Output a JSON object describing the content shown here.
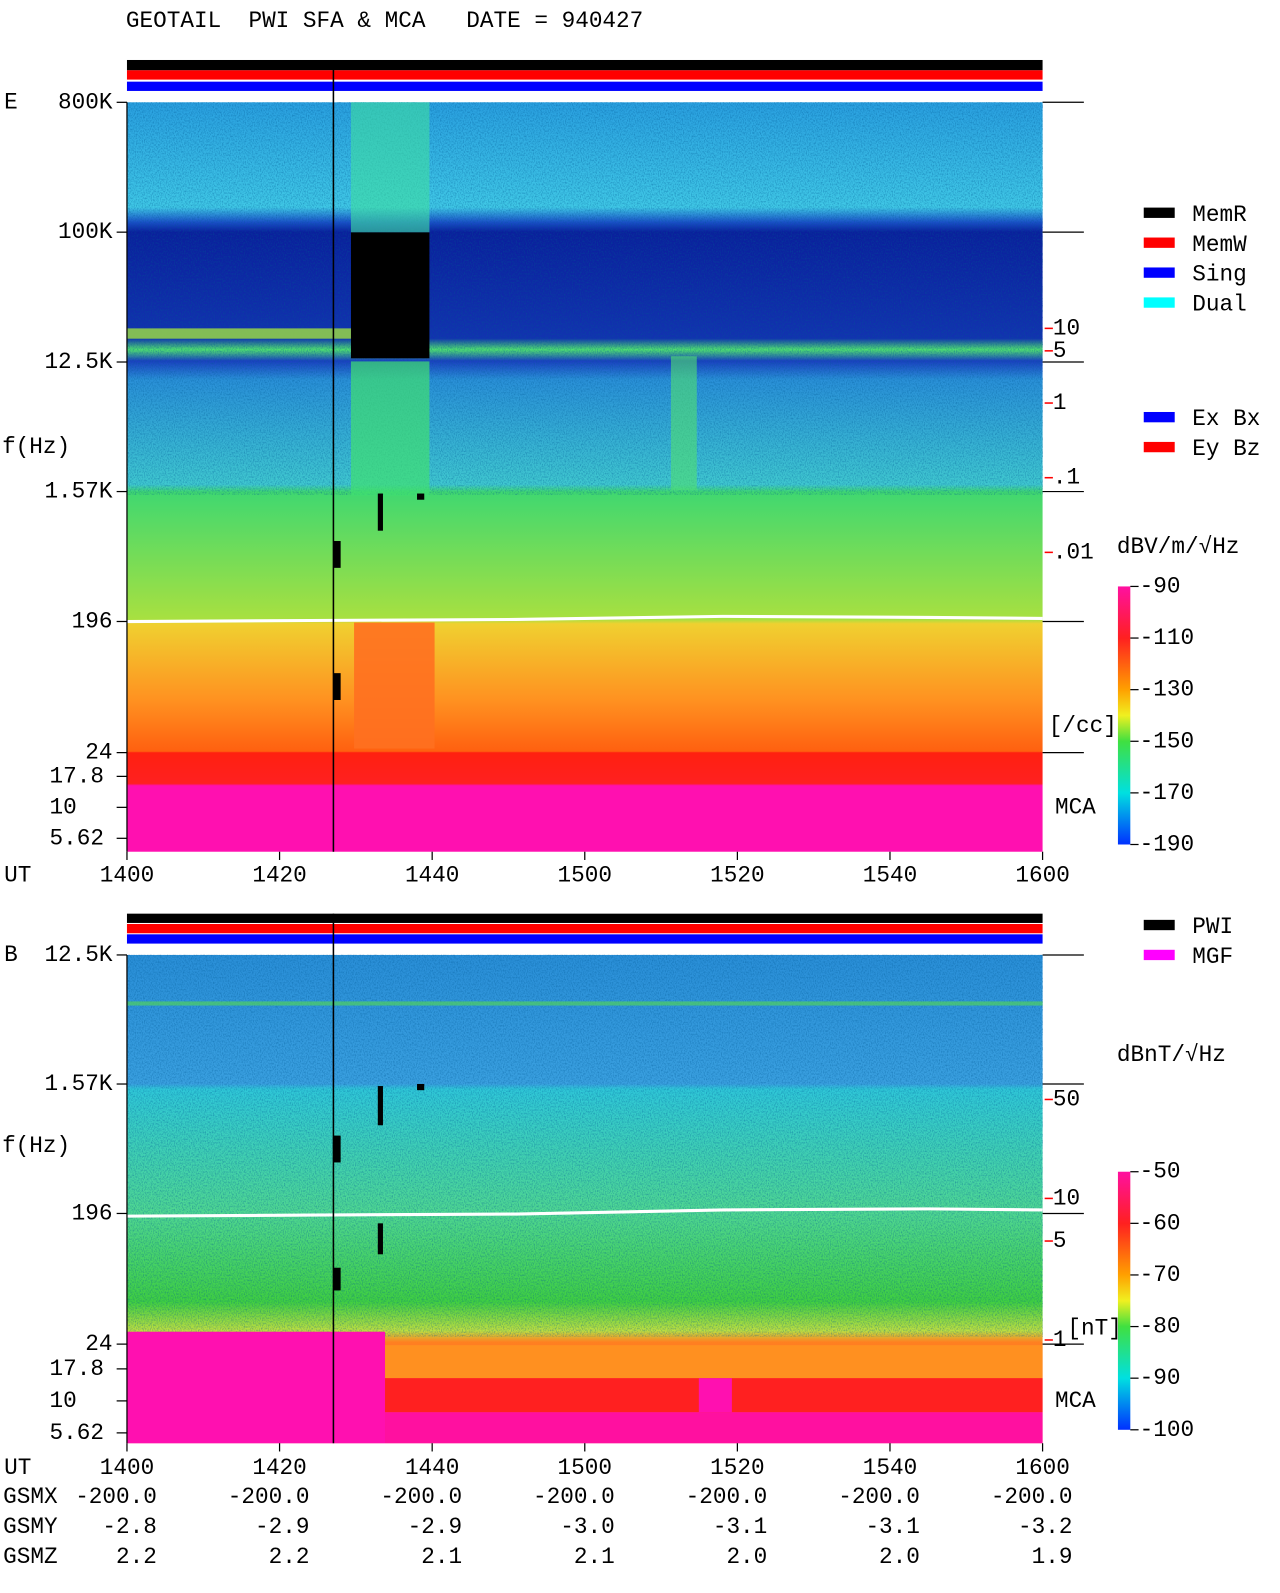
{
  "title": "GEOTAIL  PWI SFA & MCA   DATE = 940427",
  "chart_data": [
    {
      "type": "spectrogram",
      "panel": "E",
      "ylabel": "f(Hz)",
      "xlabel": "UT",
      "log_y": true,
      "ylim": [
        24,
        800000
      ],
      "yticks": [
        {
          "value": 800000,
          "label": "800K"
        },
        {
          "value": 100000,
          "label": "100K"
        },
        {
          "value": 12500,
          "label": "12.5K"
        },
        {
          "value": 1570,
          "label": "1.57K"
        },
        196,
        24
      ],
      "mca_label": "MCA",
      "mca_ylim": [
        5.62,
        17.8
      ],
      "mca_yticks": [
        17.8,
        10,
        5.62
      ],
      "y2lim": [
        0.01,
        10
      ],
      "y2ticks": [
        10,
        5,
        1,
        {
          "value": 0.1,
          "label": ".1"
        },
        {
          "value": 0.01,
          "label": ".01"
        }
      ],
      "y2label": "[/cc]",
      "y2color": "#ff0000",
      "categories": [
        "1400",
        "1420",
        "1440",
        "1500",
        "1520",
        "1540",
        "1600"
      ],
      "colorbar": {
        "label": "dBV/m/√Hz",
        "lim": [
          -190,
          -90
        ],
        "ticks": [
          -90,
          -110,
          -130,
          -150,
          -170,
          -190
        ]
      },
      "legend": [
        [
          {
            "name": "MemR",
            "color": "#000000"
          },
          {
            "name": "MemW",
            "color": "#ff0000"
          },
          {
            "name": "Sing",
            "color": "#0000ff"
          },
          {
            "name": "Dual",
            "color": "#00ffff"
          }
        ],
        [
          {
            "name": "Ex Bx",
            "color": "#0000ff"
          },
          {
            "name": "Ey Bz",
            "color": "#ff0000"
          }
        ]
      ]
    },
    {
      "type": "spectrogram",
      "panel": "B",
      "ylabel": "f(Hz)",
      "xlabel": "UT",
      "log_y": true,
      "ylim": [
        24,
        12500
      ],
      "yticks": [
        {
          "value": 12500,
          "label": "12.5K"
        },
        {
          "value": 1570,
          "label": "1.57K"
        },
        196,
        24
      ],
      "mca_label": "MCA",
      "mca_ylim": [
        5.62,
        17.8
      ],
      "mca_yticks": [
        17.8,
        10,
        5.62
      ],
      "y2lim": [
        1,
        50
      ],
      "y2ticks": [
        50,
        10,
        5,
        1
      ],
      "y2label": "[nT]",
      "y2color": "#ff0000",
      "categories": [
        "1400",
        "1420",
        "1440",
        "1500",
        "1520",
        "1540",
        "1600"
      ],
      "colorbar": {
        "label": "dBnT/√Hz",
        "lim": [
          -100,
          -50
        ],
        "ticks": [
          -50,
          -60,
          -70,
          -80,
          -90,
          -100
        ]
      },
      "legend": [
        [
          {
            "name": "PWI",
            "color": "#000000"
          },
          {
            "name": "MGF",
            "color": "#ff00ff"
          }
        ]
      ]
    }
  ],
  "orbit": [
    {
      "label": "GSMX",
      "values": [
        "-200.0",
        "-200.0",
        "-200.0",
        "-200.0",
        "-200.0",
        "-200.0",
        "-200.0"
      ]
    },
    {
      "label": "GSMY",
      "values": [
        "-2.8",
        "-2.9",
        "-2.9",
        "-3.0",
        "-3.1",
        "-3.1",
        "-3.2"
      ]
    },
    {
      "label": "GSMZ",
      "values": [
        "2.2",
        "2.2",
        "2.1",
        "2.1",
        "2.0",
        "2.0",
        "1.9"
      ]
    }
  ]
}
